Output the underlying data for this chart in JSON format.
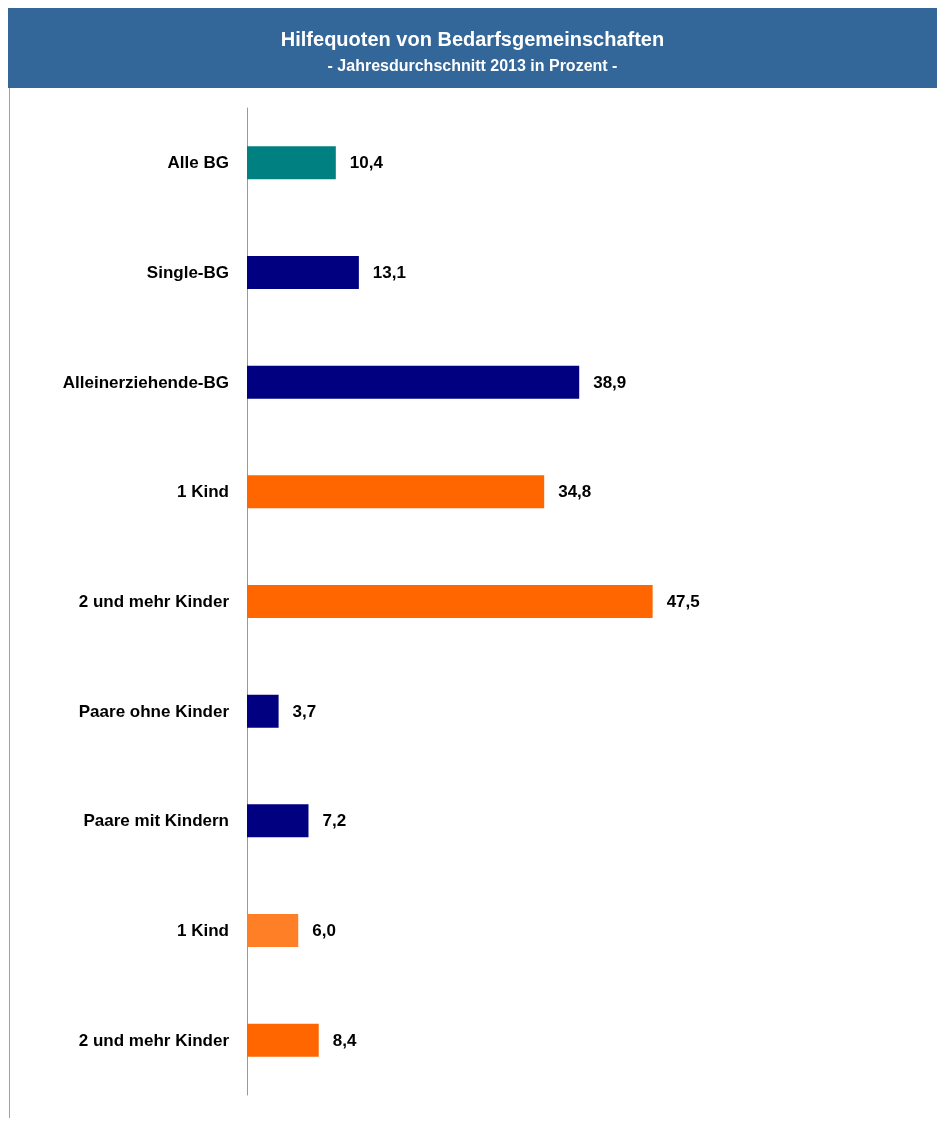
{
  "chart_data": {
    "type": "bar",
    "orientation": "horizontal",
    "title": "Hilfequoten von Bedarfsgemeinschaften",
    "subtitle": "- Jahresdurchschnitt 2013 in Prozent -",
    "categories": [
      "Alle BG",
      "Single-BG",
      "Alleinerziehende-BG",
      "1 Kind",
      "2 und mehr Kinder",
      "Paare ohne Kinder",
      "Paare mit Kindern",
      "1 Kind",
      "2 und mehr Kinder"
    ],
    "values": [
      10.4,
      13.1,
      38.9,
      34.8,
      47.5,
      3.7,
      7.2,
      6.0,
      8.4
    ],
    "value_labels": [
      "10,4",
      "13,1",
      "38,9",
      "34,8",
      "47,5",
      "3,7",
      "7,2",
      "6,0",
      "8,4"
    ],
    "colors": [
      "#008080",
      "#000080",
      "#000080",
      "#ff6600",
      "#ff6600",
      "#000080",
      "#000080",
      "#ff7f27",
      "#ff6600"
    ]
  }
}
